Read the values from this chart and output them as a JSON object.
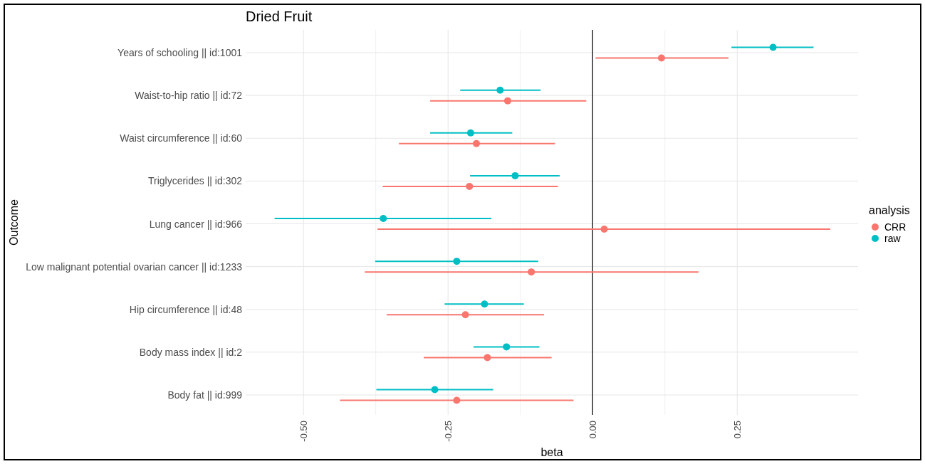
{
  "chart_data": {
    "type": "scatter",
    "orientation": "horizontal",
    "title": "Dried Fruit",
    "xlabel": "beta",
    "ylabel": "Outcome",
    "legend_title": "analysis",
    "legend": "right",
    "grid": true,
    "marker": "circle",
    "categories": [
      "Years of schooling || id:1001",
      "Waist-to-hip ratio || id:72",
      "Waist circumference || id:60",
      "Triglycerides || id:302",
      "Lung cancer || id:966",
      "Low malignant potential ovarian cancer || id:1233",
      "Hip circumference || id:48",
      "Body mass index || id:2",
      "Body fat || id:999"
    ],
    "xlim": [
      -0.6,
      0.459
    ],
    "xticks": [
      {
        "value": -0.5,
        "label": "-0.50"
      },
      {
        "value": -0.25,
        "label": "-0.25"
      },
      {
        "value": 0,
        "label": "0.00"
      },
      {
        "value": 0.25,
        "label": "0.25"
      }
    ],
    "ref_lines": [
      {
        "axis": "x",
        "value": 0,
        "color": "#000000"
      }
    ],
    "series": [
      {
        "name": "CRR",
        "color": "#f8766d",
        "values": [
          0.119,
          -0.147,
          -0.201,
          -0.213,
          0.02,
          -0.106,
          -0.22,
          -0.182,
          -0.235
        ],
        "errors": [
          [
            0.005,
            0.235
          ],
          [
            -0.281,
            -0.011
          ],
          [
            -0.335,
            -0.065
          ],
          [
            -0.363,
            -0.06
          ],
          [
            -0.372,
            0.411
          ],
          [
            -0.394,
            0.183
          ],
          [
            -0.356,
            -0.084
          ],
          [
            -0.292,
            -0.071
          ],
          [
            -0.437,
            -0.033
          ]
        ]
      },
      {
        "name": "raw",
        "color": "#00bfc4",
        "values": [
          0.312,
          -0.16,
          -0.211,
          -0.134,
          -0.362,
          -0.235,
          -0.187,
          -0.149,
          -0.273
        ],
        "errors": [
          [
            0.24,
            0.382
          ],
          [
            -0.229,
            -0.09
          ],
          [
            -0.281,
            -0.139
          ],
          [
            -0.212,
            -0.057
          ],
          [
            -0.55,
            -0.175
          ],
          [
            -0.376,
            -0.094
          ],
          [
            -0.256,
            -0.119
          ],
          [
            -0.206,
            -0.092
          ],
          [
            -0.374,
            -0.172
          ]
        ]
      }
    ]
  }
}
